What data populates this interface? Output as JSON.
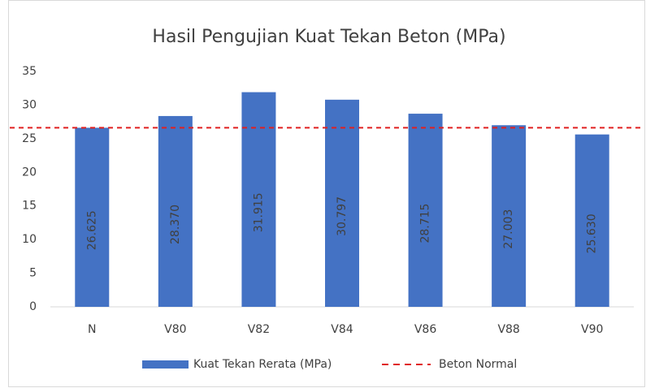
{
  "chart_data": {
    "type": "bar",
    "title": "Hasil Pengujian Kuat Tekan Beton (MPa)",
    "categories": [
      "N",
      "V80",
      "V82",
      "V84",
      "V86",
      "V88",
      "V90"
    ],
    "series": [
      {
        "name": "Kuat Tekan Rerata (MPa)",
        "color": "#4472c4",
        "values": [
          26.625,
          28.37,
          31.915,
          30.797,
          28.715,
          27.003,
          25.63
        ],
        "value_labels": [
          "26.625",
          "28.370",
          "31.915",
          "30.797",
          "28.715",
          "27.003",
          "25.630"
        ]
      }
    ],
    "reference_line": {
      "name": "Beton Normal",
      "value": 26.625,
      "color": "#e02020",
      "style": "dashed"
    },
    "ylim": [
      0,
      35
    ],
    "yticks": [
      0,
      5,
      10,
      15,
      20,
      25,
      30,
      35
    ],
    "grid": false,
    "legend": "bottom"
  }
}
